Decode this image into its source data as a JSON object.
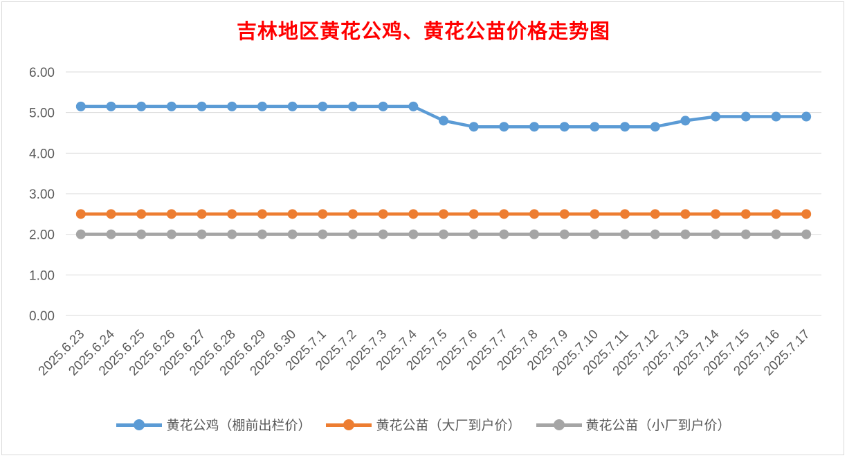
{
  "chart_data": {
    "type": "line",
    "title": "吉林地区黄花公鸡、黄花公苗价格走势图",
    "categories": [
      "2025.6.23",
      "2025.6.24",
      "2025.6.25",
      "2025.6.26",
      "2025.6.27",
      "2025.6.28",
      "2025.6.29",
      "2025.6.30",
      "2025.7.1",
      "2025.7.2",
      "2025.7.3",
      "2025.7.4",
      "2025.7.5",
      "2025.7.6",
      "2025.7.7",
      "2025.7.8",
      "2025.7.9",
      "2025.7.10",
      "2025.7.11",
      "2025.7.12",
      "2025.7.13",
      "2025.7.14",
      "2025.7.15",
      "2025.7.16",
      "2025.7.17"
    ],
    "y_ticks": [
      "0.00",
      "1.00",
      "2.00",
      "3.00",
      "4.00",
      "5.00",
      "6.00"
    ],
    "ylim": [
      0,
      6
    ],
    "grid": true,
    "legend_position": "bottom",
    "series": [
      {
        "name": "黄花公鸡（棚前出栏价）",
        "color": "#5b9bd5",
        "values": [
          5.15,
          5.15,
          5.15,
          5.15,
          5.15,
          5.15,
          5.15,
          5.15,
          5.15,
          5.15,
          5.15,
          5.15,
          4.8,
          4.65,
          4.65,
          4.65,
          4.65,
          4.65,
          4.65,
          4.65,
          4.8,
          4.9,
          4.9,
          4.9,
          4.9
        ]
      },
      {
        "name": "黄花公苗（大厂到户价）",
        "color": "#ed7d31",
        "values": [
          2.5,
          2.5,
          2.5,
          2.5,
          2.5,
          2.5,
          2.5,
          2.5,
          2.5,
          2.5,
          2.5,
          2.5,
          2.5,
          2.5,
          2.5,
          2.5,
          2.5,
          2.5,
          2.5,
          2.5,
          2.5,
          2.5,
          2.5,
          2.5,
          2.5
        ]
      },
      {
        "name": "黄花公苗（小厂到户价）",
        "color": "#a5a5a5",
        "values": [
          2.0,
          2.0,
          2.0,
          2.0,
          2.0,
          2.0,
          2.0,
          2.0,
          2.0,
          2.0,
          2.0,
          2.0,
          2.0,
          2.0,
          2.0,
          2.0,
          2.0,
          2.0,
          2.0,
          2.0,
          2.0,
          2.0,
          2.0,
          2.0,
          2.0
        ]
      }
    ]
  }
}
